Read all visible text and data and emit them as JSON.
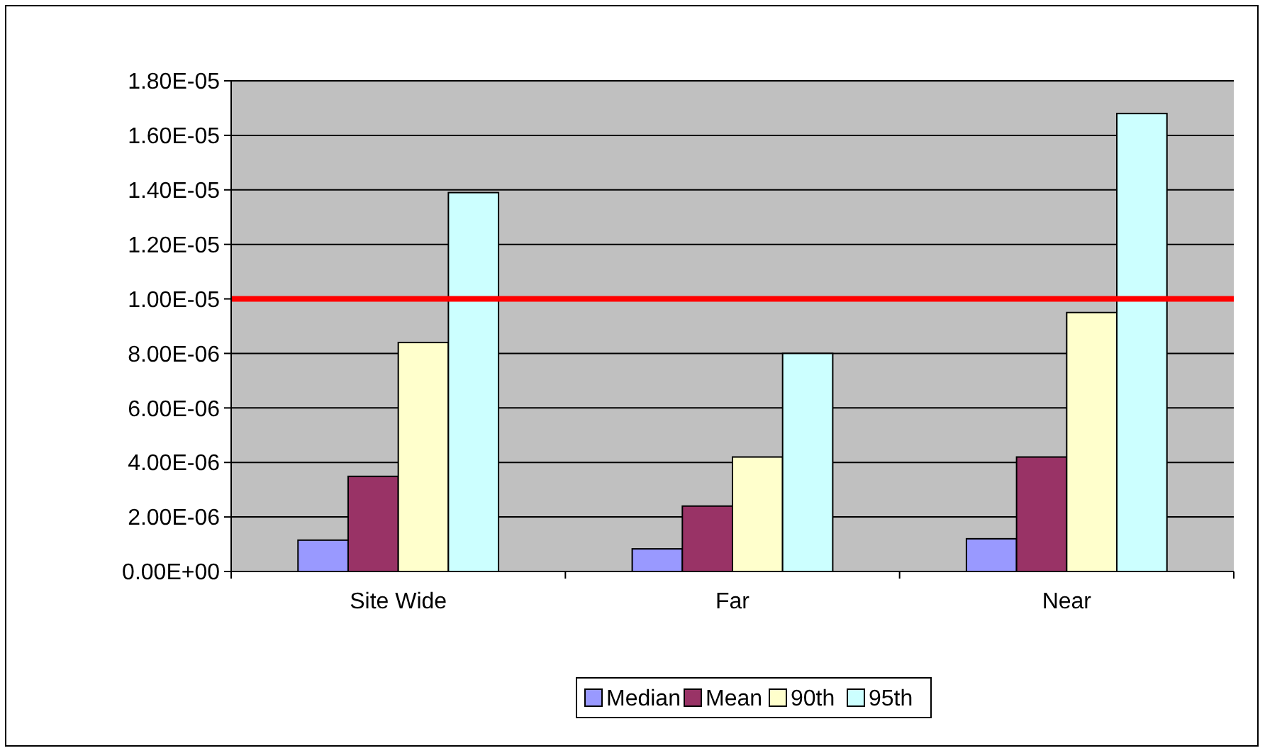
{
  "chart_data": {
    "type": "bar",
    "categories": [
      "Site Wide",
      "Far",
      "Near"
    ],
    "series": [
      {
        "name": "Median",
        "color": "#9999ff",
        "values": [
          1.15e-06,
          8.3e-07,
          1.2e-06
        ]
      },
      {
        "name": "Mean",
        "color": "#993366",
        "values": [
          3.49e-06,
          2.4e-06,
          4.2e-06
        ]
      },
      {
        "name": "90th",
        "color": "#ffffcc",
        "values": [
          8.4e-06,
          4.2e-06,
          9.5e-06
        ]
      },
      {
        "name": "95th",
        "color": "#ccffff",
        "values": [
          1.39e-05,
          8e-06,
          1.68e-05
        ]
      }
    ],
    "ylim": [
      0,
      1.8e-05
    ],
    "yticks": [
      {
        "value": 0,
        "label": "0.00E+00"
      },
      {
        "value": 2e-06,
        "label": "2.00E-06"
      },
      {
        "value": 4e-06,
        "label": "4.00E-06"
      },
      {
        "value": 6e-06,
        "label": "6.00E-06"
      },
      {
        "value": 8e-06,
        "label": "8.00E-06"
      },
      {
        "value": 1e-05,
        "label": "1.00E-05"
      },
      {
        "value": 1.2e-05,
        "label": "1.20E-05"
      },
      {
        "value": 1.4e-05,
        "label": "1.40E-05"
      },
      {
        "value": 1.6e-05,
        "label": "1.60E-05"
      },
      {
        "value": 1.8e-05,
        "label": "1.80E-05"
      }
    ],
    "ref_lines": [
      {
        "axis": "y",
        "value": 1e-05,
        "color": "#ff0000"
      }
    ],
    "grid": "y",
    "legend": "bottom"
  }
}
